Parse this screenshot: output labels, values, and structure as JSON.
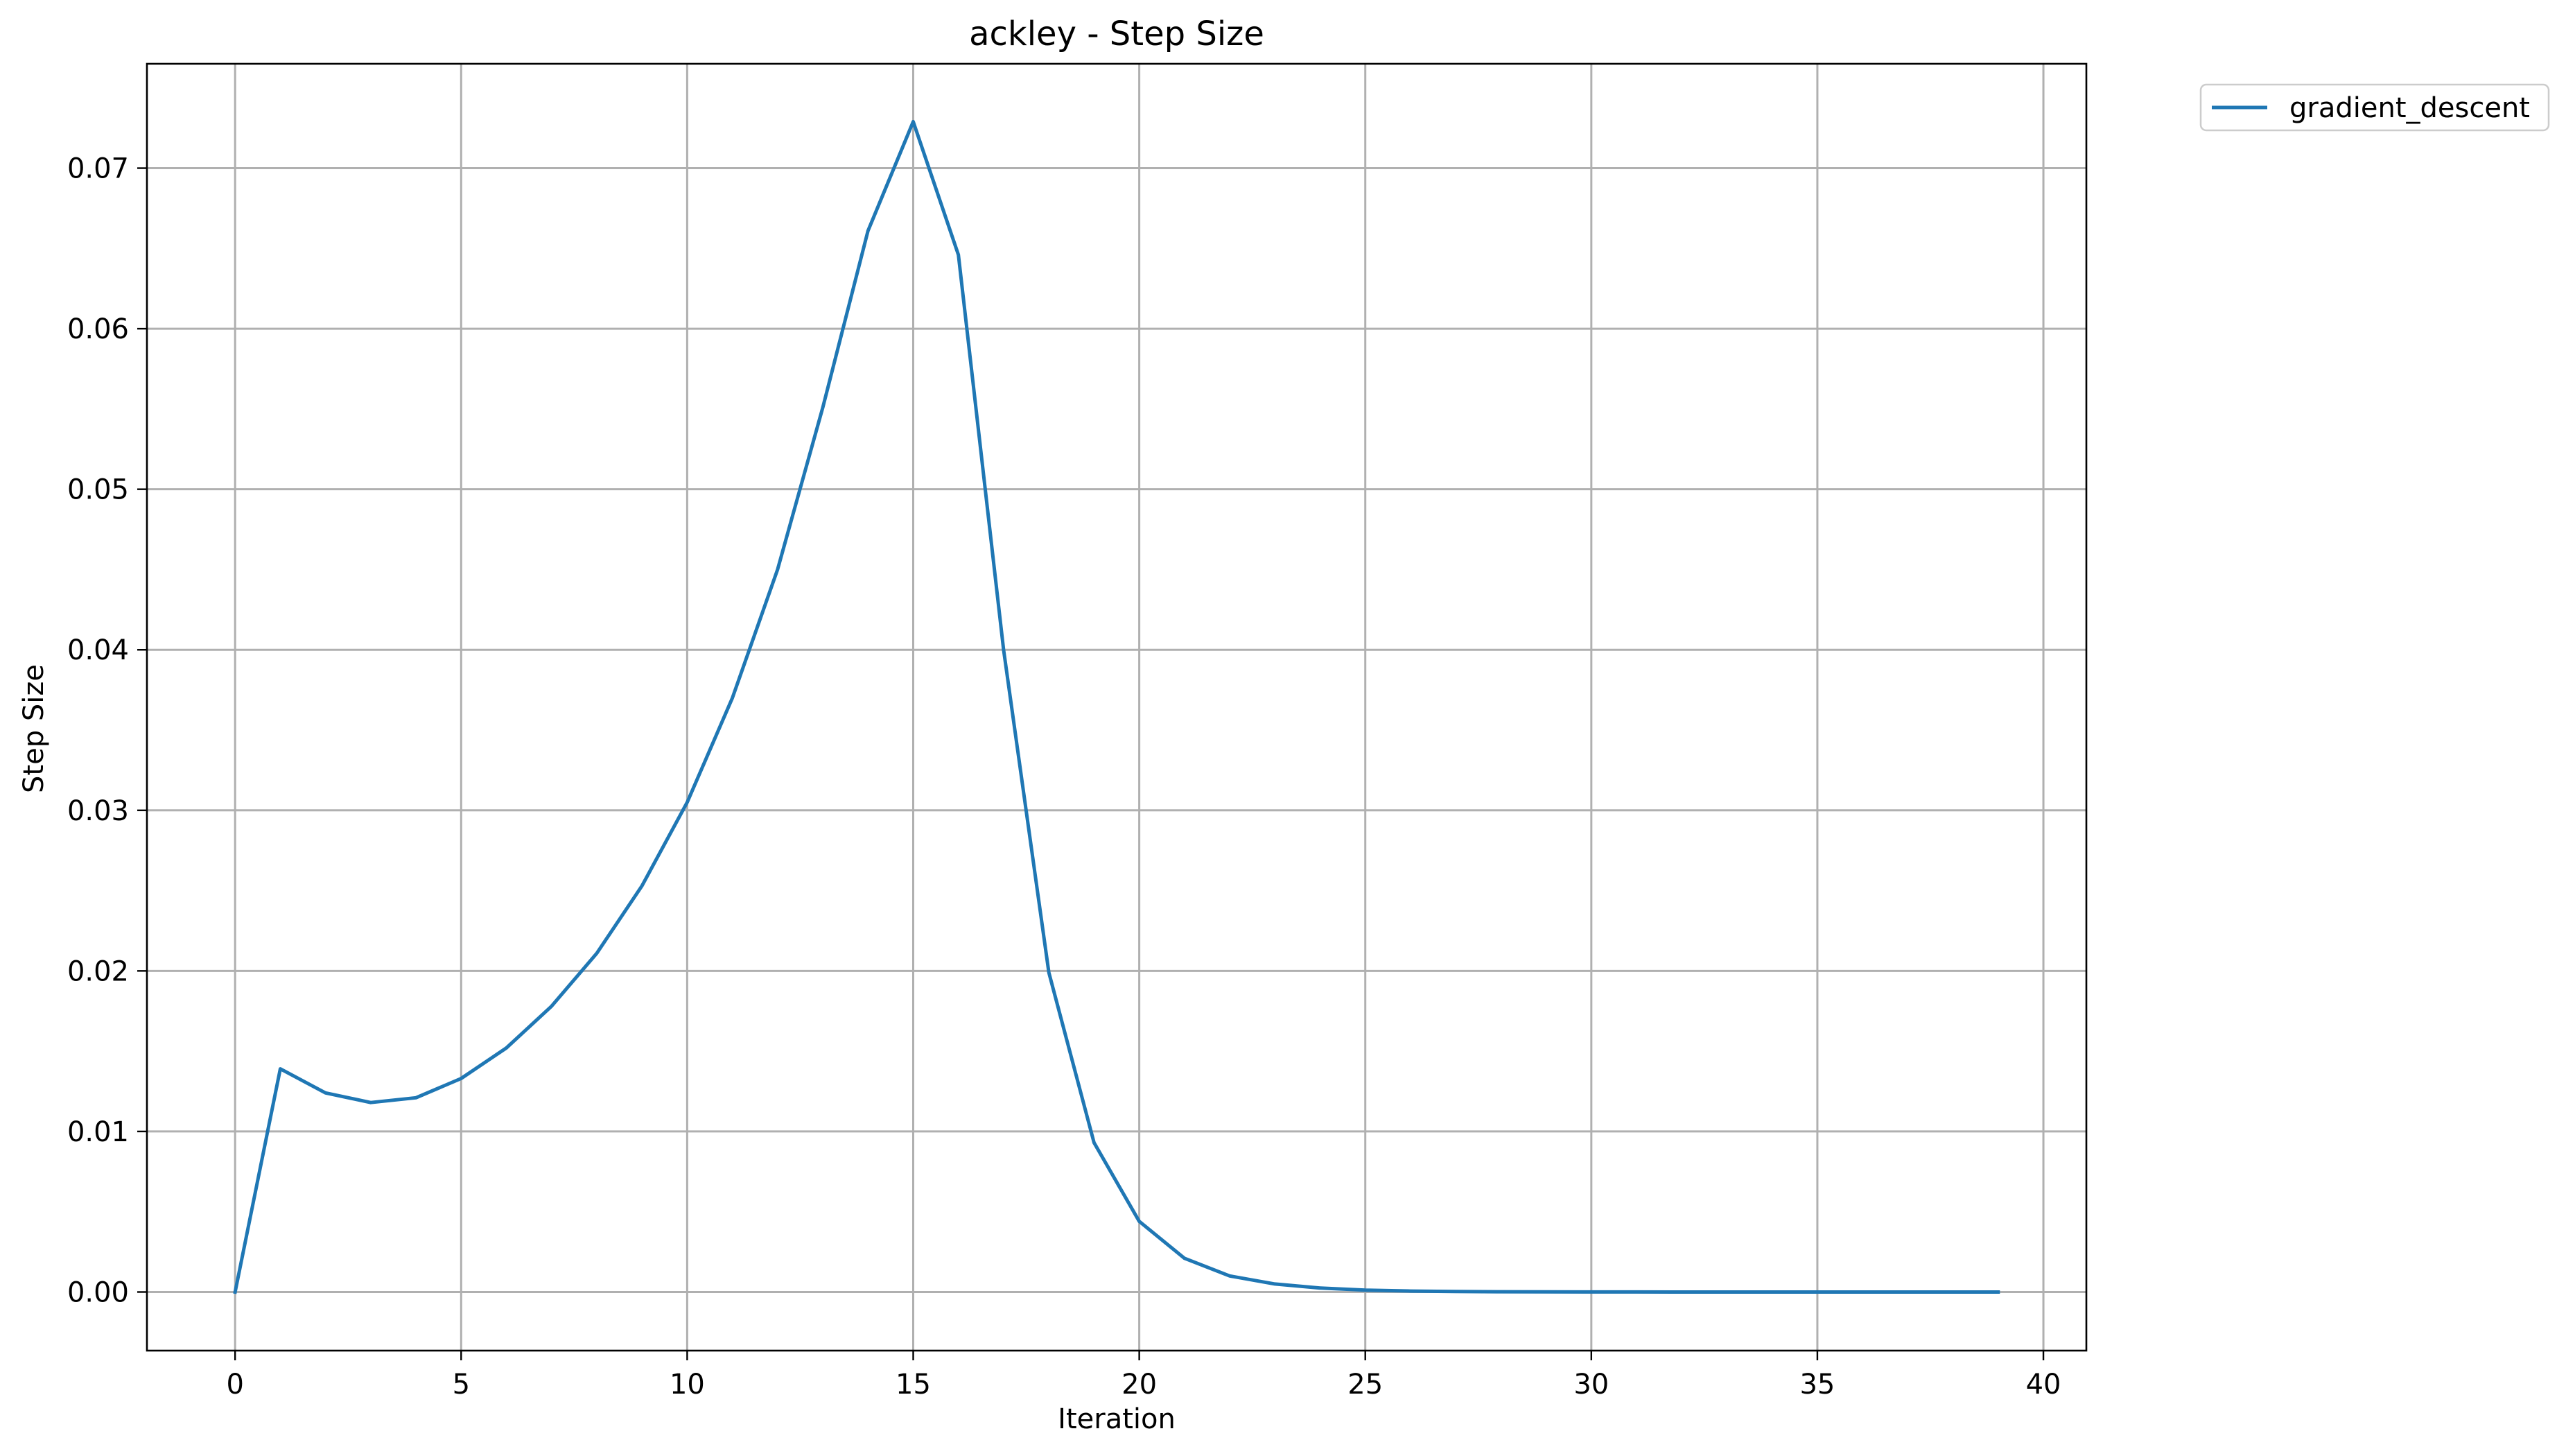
{
  "chart_data": {
    "type": "line",
    "title": "ackley - Step Size",
    "xlabel": "Iteration",
    "ylabel": "Step Size",
    "xlim": [
      -1.95,
      40.95
    ],
    "ylim": [
      -0.00365,
      0.0765
    ],
    "xticks": [
      0,
      5,
      10,
      15,
      20,
      25,
      30,
      35,
      40
    ],
    "xtick_labels": [
      "0",
      "5",
      "10",
      "15",
      "20",
      "25",
      "30",
      "35",
      "40"
    ],
    "yticks": [
      0.0,
      0.01,
      0.02,
      0.03,
      0.04,
      0.05,
      0.06,
      0.07
    ],
    "ytick_labels": [
      "0.00",
      "0.01",
      "0.02",
      "0.03",
      "0.04",
      "0.05",
      "0.06",
      "0.07"
    ],
    "grid": true,
    "legend_position": "outside-top-right",
    "series": [
      {
        "name": "gradient_descent",
        "color": "#1f77b4",
        "x": [
          0,
          1,
          2,
          3,
          4,
          5,
          6,
          7,
          8,
          9,
          10,
          11,
          12,
          13,
          14,
          15,
          16,
          17,
          18,
          19,
          20,
          21,
          22,
          23,
          24,
          25,
          26,
          27,
          28,
          29,
          30,
          31,
          32,
          33,
          34,
          35,
          36,
          37,
          38,
          39
        ],
        "values": [
          0.0,
          0.0139,
          0.0124,
          0.0118,
          0.0121,
          0.0133,
          0.0152,
          0.0178,
          0.0211,
          0.0253,
          0.0305,
          0.037,
          0.045,
          0.0551,
          0.0661,
          0.0729,
          0.0646,
          0.04,
          0.0199,
          0.0093,
          0.0044,
          0.0021,
          0.001,
          0.0005,
          0.00025,
          0.00012,
          6e-05,
          3e-05,
          1.5e-05,
          8e-06,
          4e-06,
          2e-06,
          1e-06,
          0.0,
          0.0,
          0.0,
          0.0,
          0.0,
          0.0,
          0.0
        ]
      }
    ]
  }
}
